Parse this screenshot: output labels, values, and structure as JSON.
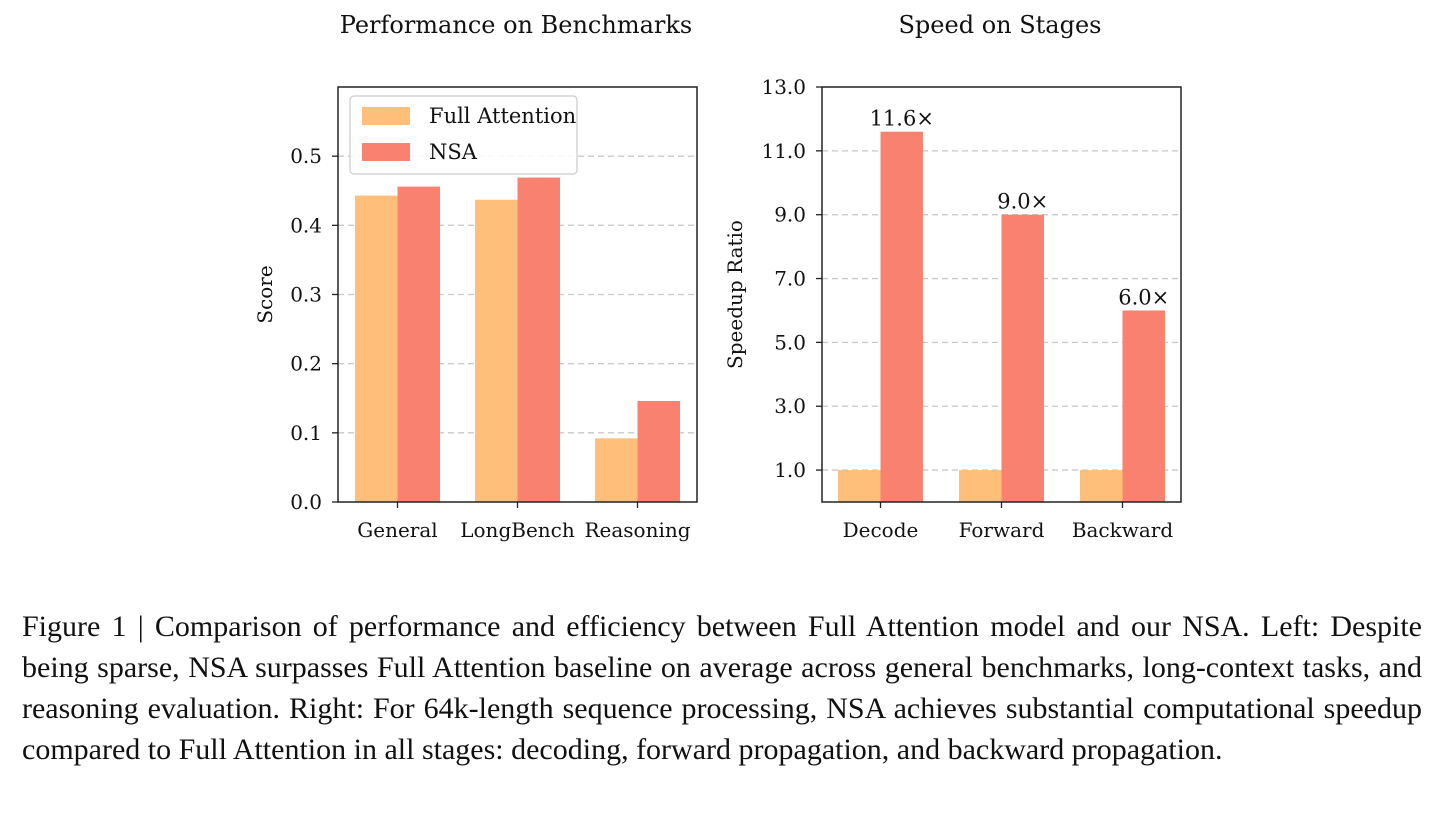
{
  "chart_data": [
    {
      "type": "bar",
      "title": "Performance on Benchmarks",
      "xlabel": "",
      "ylabel": "Score",
      "categories": [
        "General",
        "LongBench",
        "Reasoning"
      ],
      "series": [
        {
          "name": "Full Attention",
          "values": [
            0.443,
            0.437,
            0.092
          ]
        },
        {
          "name": "NSA",
          "values": [
            0.456,
            0.469,
            0.146
          ]
        }
      ],
      "ylim": [
        0,
        0.6
      ],
      "yticks": [
        0.0,
        0.1,
        0.2,
        0.3,
        0.4,
        0.5
      ],
      "ytick_labels": [
        "0.0",
        "0.1",
        "0.2",
        "0.3",
        "0.4",
        "0.5"
      ],
      "grid": "horizontal dashed",
      "legend": "top-left",
      "colors": {
        "Full Attention": "#FDBF7A",
        "NSA": "#F98170"
      }
    },
    {
      "type": "bar",
      "title": "Speed on Stages",
      "xlabel": "",
      "ylabel": "Speedup Ratio",
      "categories": [
        "Decode",
        "Forward",
        "Backward"
      ],
      "series": [
        {
          "name": "Full Attention",
          "values": [
            1.0,
            1.0,
            1.0
          ]
        },
        {
          "name": "NSA",
          "values": [
            11.6,
            9.0,
            6.0
          ]
        }
      ],
      "data_labels": [
        "11.6×",
        "9.0×",
        "6.0×"
      ],
      "ylim": [
        0,
        13.0
      ],
      "yticks": [
        1.0,
        3.0,
        5.0,
        7.0,
        9.0,
        11.0,
        13.0
      ],
      "ytick_labels": [
        "1.0",
        "3.0",
        "5.0",
        "7.0",
        "9.0",
        "11.0",
        "13.0"
      ],
      "grid": "horizontal dashed",
      "legend": "none",
      "colors": {
        "Full Attention": "#FDBF7A",
        "NSA": "#F98170"
      }
    }
  ],
  "caption": "Figure 1 | Comparison of performance and efficiency between Full Attention model and our NSA. Left: Despite being sparse, NSA surpasses Full Attention baseline on average across general benchmarks, long-context tasks, and reasoning evaluation. Right: For 64k-length sequence processing, NSA achieves substantial computational speedup compared to Full Attention in all stages: decoding, forward propagation, and backward propagation."
}
